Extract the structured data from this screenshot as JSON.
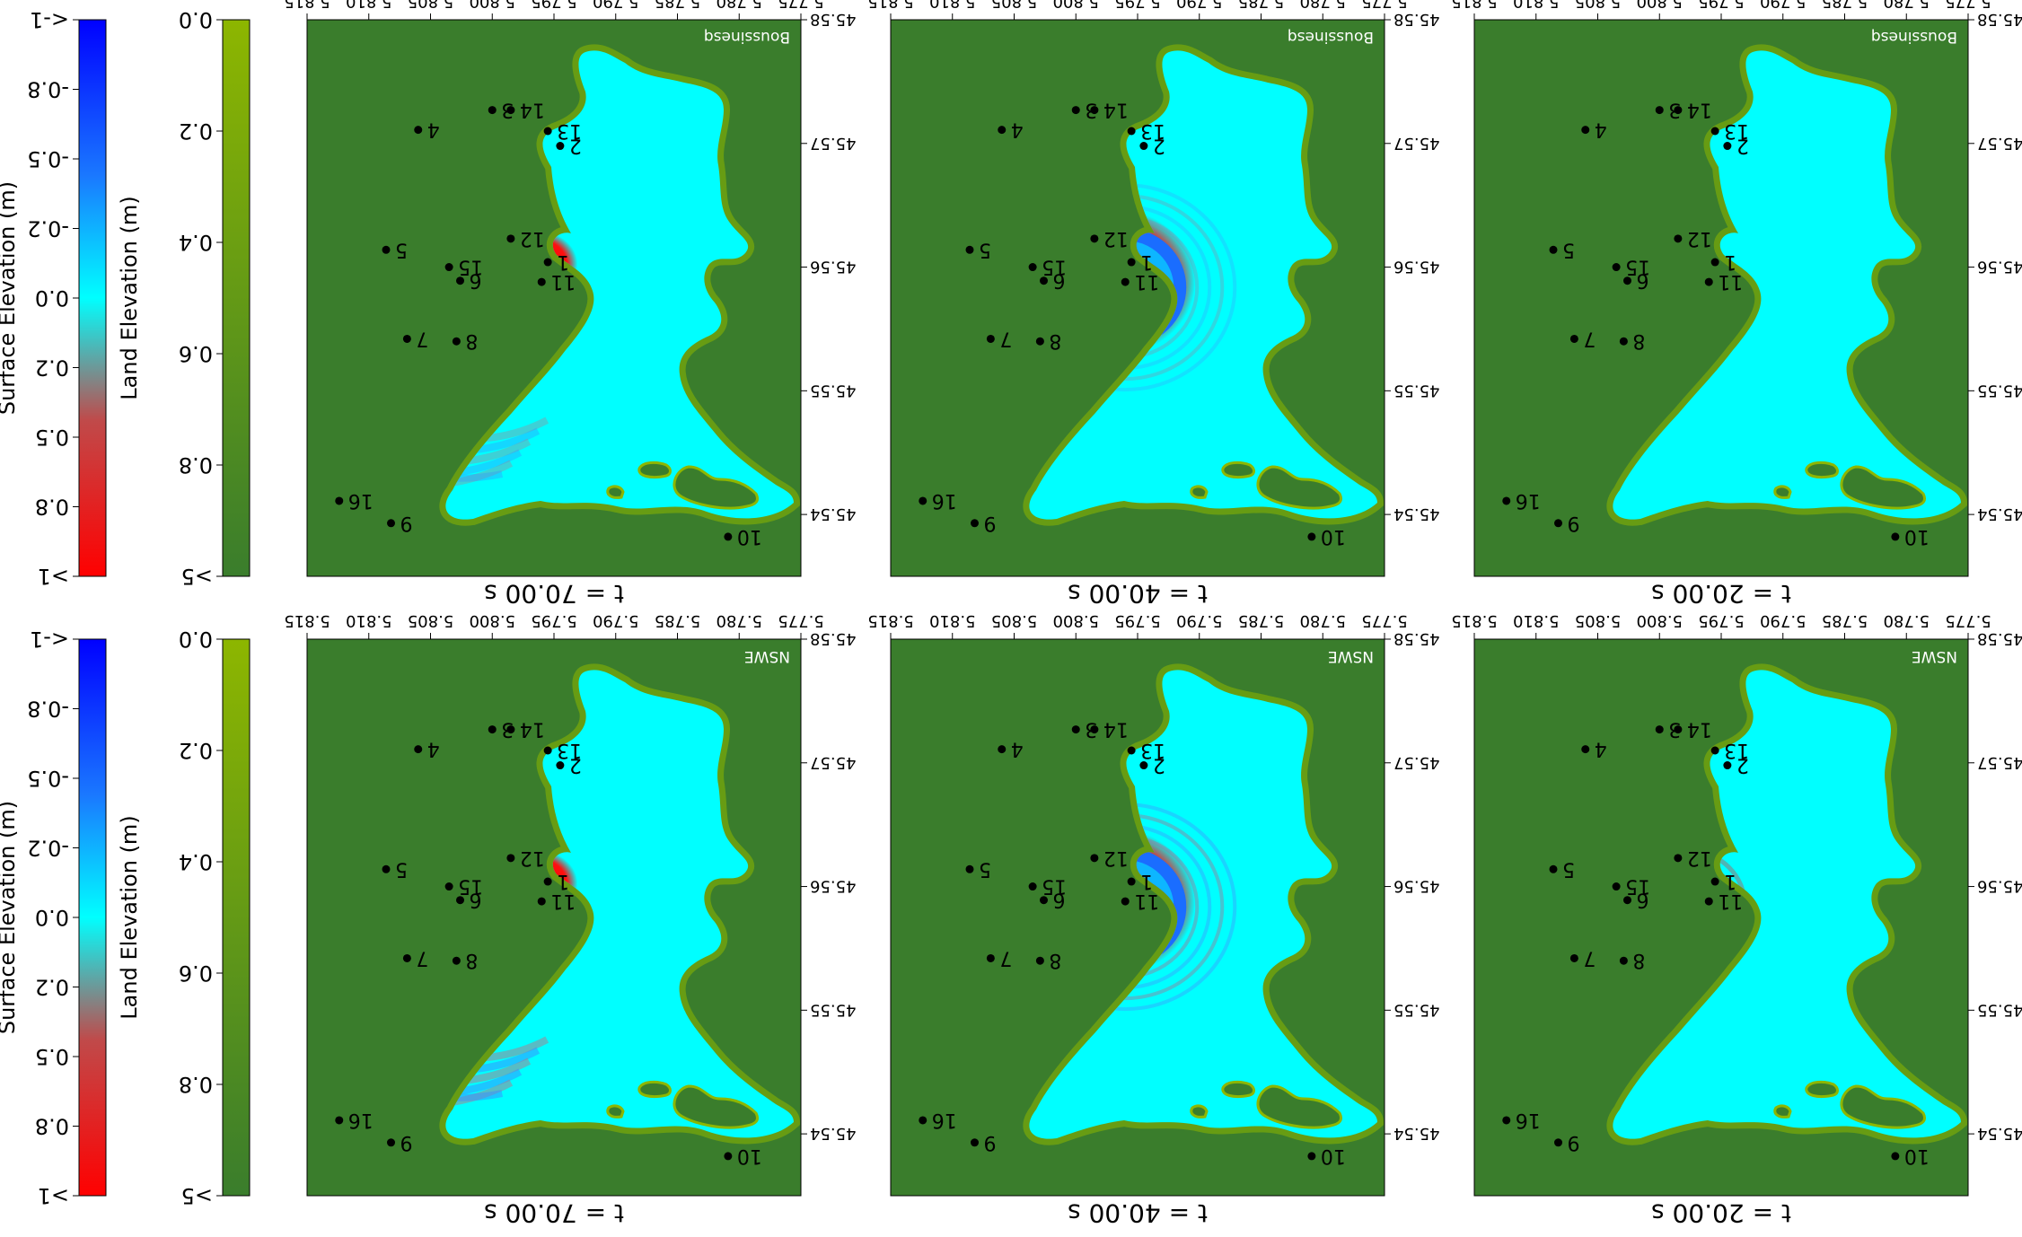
{
  "chart_data": {
    "type": "heatmap",
    "description_rotation_deg": 180,
    "x_ticks": [
      "5.775",
      "5.780",
      "5.785",
      "5.790",
      "5.795",
      "5.800",
      "5.805",
      "5.810",
      "5.815"
    ],
    "y_ticks": [
      "45.54",
      "45.55",
      "45.56",
      "45.57",
      "45.58"
    ],
    "xlim": [
      5.775,
      5.815
    ],
    "ylim": [
      45.535,
      45.58
    ],
    "colorbars": [
      {
        "key": "surface",
        "label": "Surface Elevation (m)",
        "ticks": [
          "<-1",
          "-0.8",
          "-0.5",
          "-0.2",
          "0.0",
          "0.2",
          "0.5",
          "0.8",
          ">1"
        ],
        "colors": [
          "#0000ff",
          "#00ffff",
          "#ff0000"
        ]
      },
      {
        "key": "land",
        "label": "Land Elevation (m)",
        "ticks": [
          "0.0",
          "0.2",
          "0.4",
          "0.6",
          "0.8",
          ">5"
        ],
        "colors": [
          "#8db600",
          "#3a7d2c"
        ]
      }
    ],
    "panels": [
      {
        "row": "NSWE",
        "time": "t = 20.00 s",
        "model": "NSWE"
      },
      {
        "row": "NSWE",
        "time": "t = 40.00 s",
        "model": "NSWE"
      },
      {
        "row": "NSWE",
        "time": "t = 70.00 s",
        "model": "NSWE"
      },
      {
        "row": "Boussinesq",
        "time": "t = 20.00 s",
        "model": "Boussinesq"
      },
      {
        "row": "Boussinesq",
        "time": "t = 40.00 s",
        "model": "Boussinesq"
      },
      {
        "row": "Boussinesq",
        "time": "t = 70.00 s",
        "model": "Boussinesq"
      }
    ],
    "gauges": [
      {
        "id": "1",
        "lon": 5.7955,
        "lat": 45.5604
      },
      {
        "id": "2",
        "lon": 5.7945,
        "lat": 45.5698
      },
      {
        "id": "3",
        "lon": 5.8,
        "lat": 45.5727
      },
      {
        "id": "4",
        "lon": 5.806,
        "lat": 45.5711
      },
      {
        "id": "5",
        "lon": 5.8086,
        "lat": 45.5614
      },
      {
        "id": "6",
        "lon": 5.8026,
        "lat": 45.5589
      },
      {
        "id": "7",
        "lon": 5.8069,
        "lat": 45.5542
      },
      {
        "id": "8",
        "lon": 5.8029,
        "lat": 45.554
      },
      {
        "id": "9",
        "lon": 5.8082,
        "lat": 45.5393
      },
      {
        "id": "10",
        "lon": 5.7809,
        "lat": 45.5382
      },
      {
        "id": "11",
        "lon": 5.796,
        "lat": 45.5588
      },
      {
        "id": "12",
        "lon": 5.7985,
        "lat": 45.5623
      },
      {
        "id": "13",
        "lon": 5.7955,
        "lat": 45.571
      },
      {
        "id": "14",
        "lon": 5.7985,
        "lat": 45.5727
      },
      {
        "id": "15",
        "lon": 5.8035,
        "lat": 45.56
      },
      {
        "id": "16",
        "lon": 5.8124,
        "lat": 45.5411
      }
    ],
    "wave_sources": [
      {
        "model": "NSWE",
        "time": "t = 20.00 s",
        "wave_reach": 0.06
      },
      {
        "model": "NSWE",
        "time": "t = 40.00 s",
        "wave_reach": 0.16
      },
      {
        "model": "NSWE",
        "time": "t = 70.00 s",
        "wave_reach": 0.33
      },
      {
        "model": "Boussinesq",
        "time": "t = 20.00 s",
        "wave_reach": 0.06
      },
      {
        "model": "Boussinesq",
        "time": "t = 40.00 s",
        "wave_reach": 0.16
      },
      {
        "model": "Boussinesq",
        "time": "t = 70.00 s",
        "wave_reach": 0.33
      }
    ]
  }
}
